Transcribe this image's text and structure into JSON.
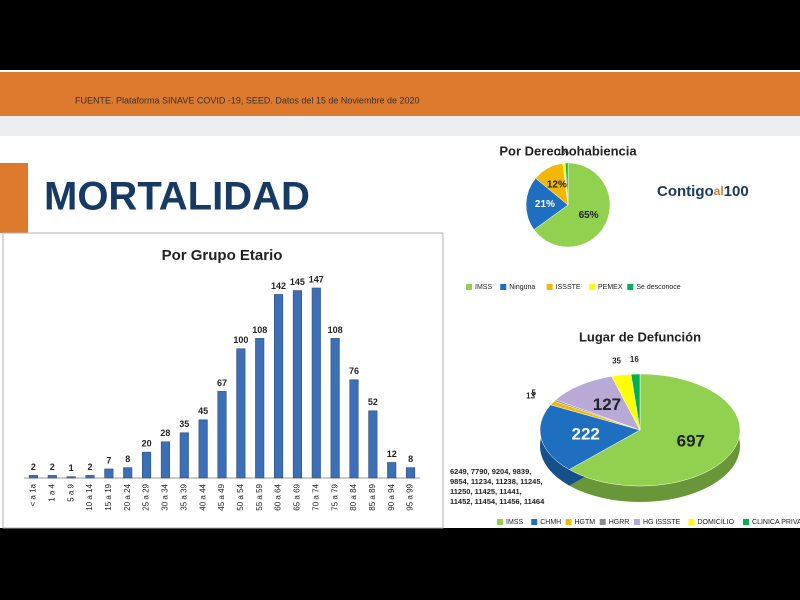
{
  "header": {
    "source": "FUENTE. Plataforma SINAVE COVID -19, SEED. Datos del 15 de Noviembre de 2020"
  },
  "title": "MORTALIDAD",
  "logo": {
    "text": "Contigo",
    "accent": "al",
    "number": "100"
  },
  "chart_data": [
    {
      "type": "bar",
      "title": "Por Grupo Etario",
      "color": "#3d6fb6",
      "categories": [
        "< a 1a",
        "1 a 4",
        "5 a 9",
        "10 a 14",
        "15 a 19",
        "20 a 24",
        "25 a 29",
        "30 a 34",
        "35 a 39",
        "40 a 44",
        "45 a 49",
        "50 a 54",
        "55 a 59",
        "60 a 64",
        "65 a 69",
        "70 a 74",
        "75 a 79",
        "80 a 84",
        "85 a 89",
        "90 a 94",
        "95 a 99"
      ],
      "values": [
        2,
        2,
        1,
        2,
        7,
        8,
        20,
        28,
        35,
        45,
        67,
        100,
        108,
        142,
        145,
        147,
        108,
        76,
        52,
        12,
        8
      ]
    },
    {
      "type": "pie",
      "title": "Por Derechohabiencia",
      "categories": [
        "IMSS",
        "Ninguna",
        "ISSSTE",
        "PEMEX",
        "Se desconoce"
      ],
      "values": [
        65,
        21,
        12,
        1,
        1
      ],
      "value_labels": [
        "65%",
        "21%",
        "12%",
        "1%",
        null
      ],
      "colors": [
        "#92d050",
        "#1f6fc0",
        "#f5b800",
        "#ffff00",
        "#00b050"
      ]
    },
    {
      "type": "pie",
      "style": "3d",
      "title": "Lugar de Defunción",
      "categories": [
        "IMSS",
        "CHMH",
        "HGTM",
        "HGRR",
        "HG ISSSTE",
        "DOMICILIO",
        "CLINICA PRIVADA"
      ],
      "values": [
        697,
        222,
        13,
        5,
        127,
        35,
        16
      ],
      "colors": [
        "#92d050",
        "#1f6fc0",
        "#f5b800",
        "#8c8c8c",
        "#b8a9d6",
        "#ffff00",
        "#00b050"
      ],
      "note": [
        "6249, 7790, 9204, 9839,",
        "9854, 11234, 11238, 11245,",
        "11250, 11425, 11441,",
        "11452, 11454, 11456, 11464"
      ]
    }
  ]
}
